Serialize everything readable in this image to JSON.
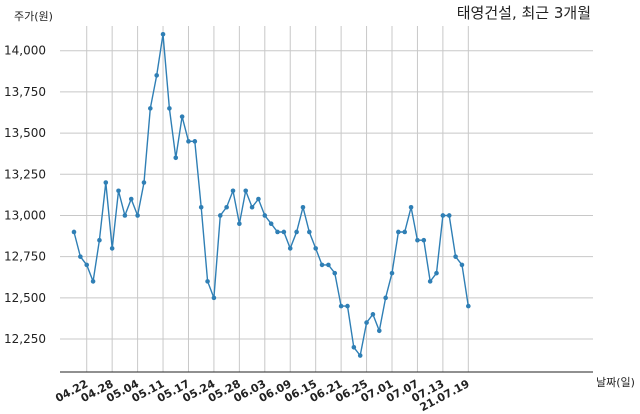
{
  "chart_data": {
    "type": "line",
    "title": "태영건설, 최근 3개월",
    "ylabel": "주가(원)",
    "xlabel": "날짜(일)",
    "ylim": [
      12050,
      14150
    ],
    "yticks": [
      12250,
      12500,
      12750,
      13000,
      13250,
      13500,
      13750,
      14000
    ],
    "ytick_labels": [
      "12,250",
      "12,500",
      "12,750",
      "13,000",
      "13,250",
      "13,500",
      "13,750",
      "14,000"
    ],
    "xtick_labels": [
      "04.22",
      "04.28",
      "05.04",
      "05.11",
      "05.17",
      "05.24",
      "05.28",
      "06.03",
      "06.09",
      "06.15",
      "06.21",
      "06.25",
      "07.01",
      "07.07",
      "07.13",
      "21.07.19"
    ],
    "xtick_index": [
      2,
      6,
      10,
      14,
      18,
      22,
      26,
      30,
      34,
      38,
      42,
      46,
      50,
      54,
      58,
      62
    ],
    "grid": true,
    "legend": "none",
    "series": [
      {
        "color": "#2f7fb5",
        "values": [
          12900,
          12750,
          12700,
          12600,
          12850,
          13200,
          12800,
          13150,
          13000,
          13100,
          13000,
          13200,
          13650,
          13850,
          14100,
          13650,
          13350,
          13600,
          13450,
          13450,
          13050,
          12600,
          12500,
          13000,
          13050,
          13150,
          12950,
          13150,
          13050,
          13100,
          13000,
          12950,
          12900,
          12900,
          12800,
          12900,
          13050,
          12900,
          12800,
          12700,
          12700,
          12650,
          12450,
          12450,
          12200,
          12150,
          12350,
          12400,
          12300,
          12500,
          12650,
          12900,
          12900,
          13050,
          12850,
          12850,
          12600,
          12650,
          13000,
          13000,
          12750,
          12700,
          12450
        ]
      }
    ]
  }
}
